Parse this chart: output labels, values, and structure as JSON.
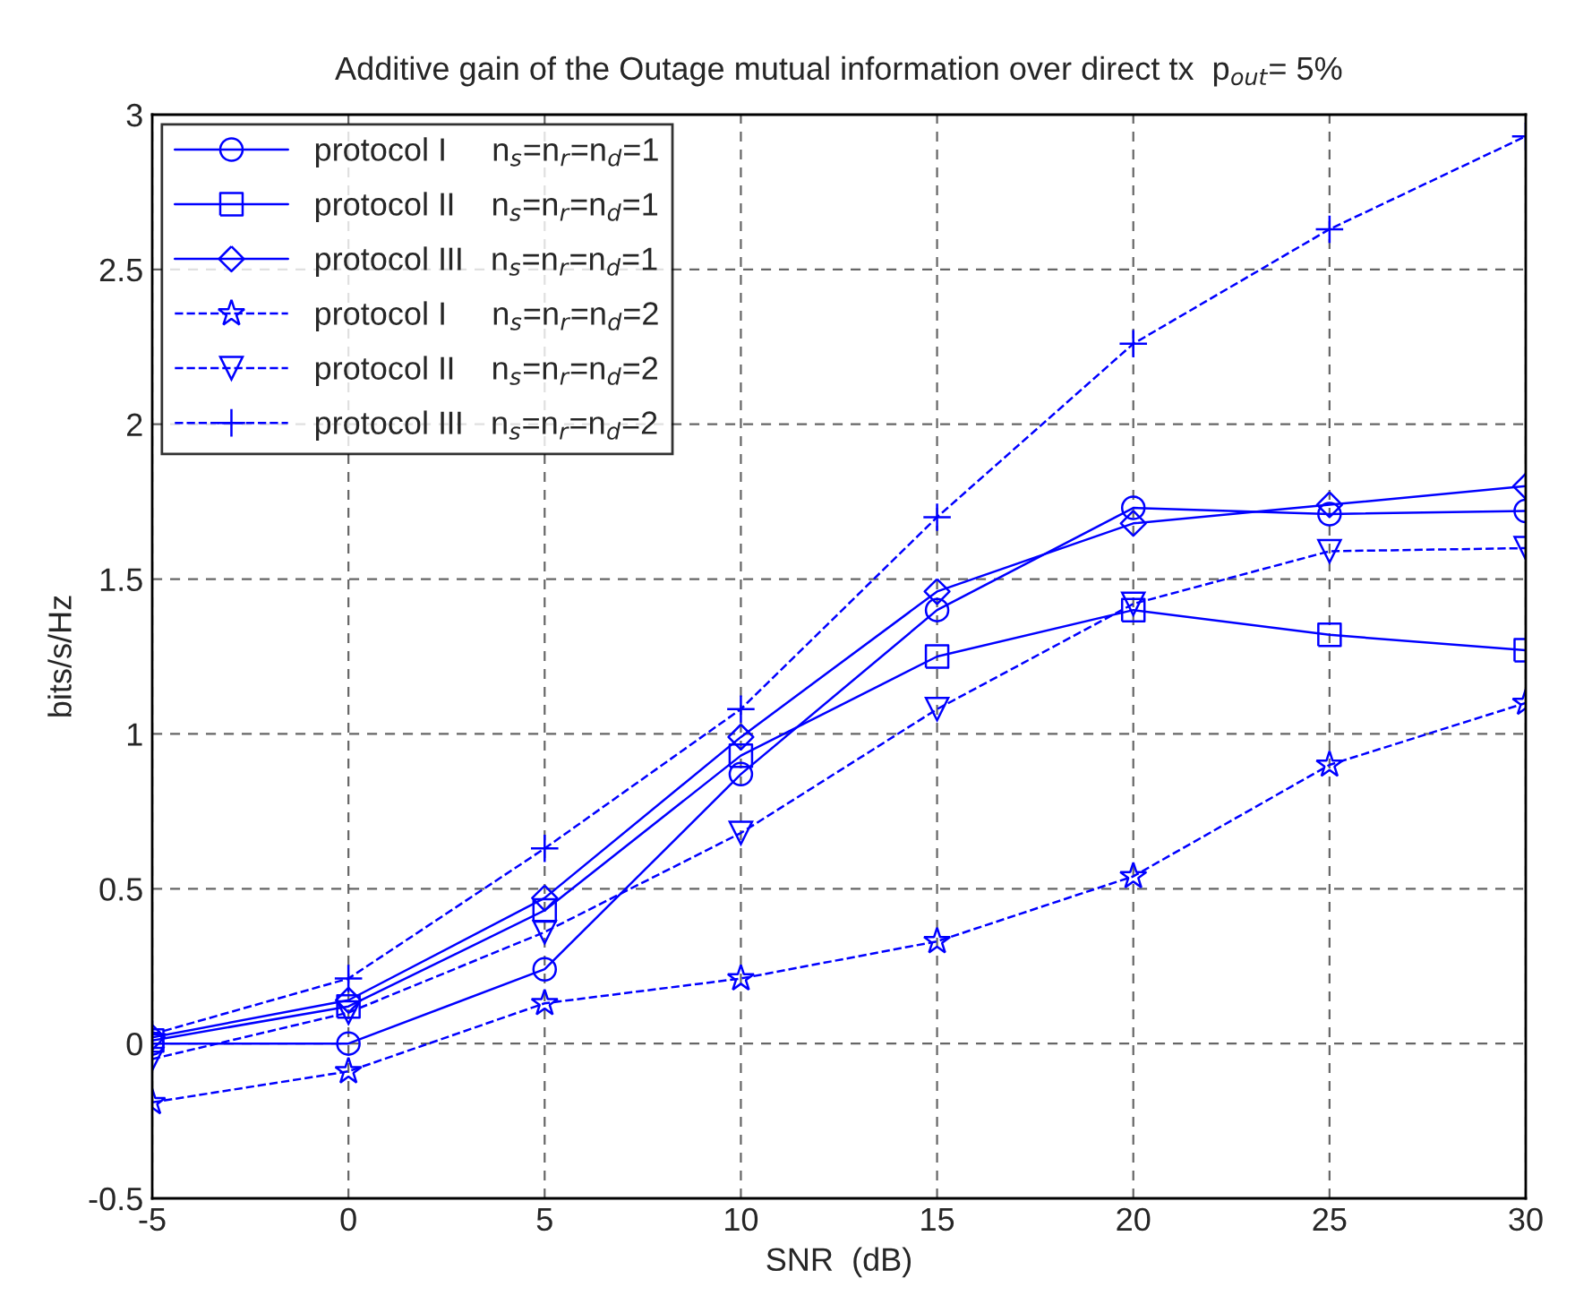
{
  "chart_data": {
    "type": "line",
    "title": "Additive gain of the Outage mutual information over direct tx  p$_{out}$= 5%",
    "xlabel": "SNR  (dB)",
    "ylabel": "bits/s/Hz",
    "x": [
      -5,
      0,
      5,
      10,
      15,
      20,
      25,
      30
    ],
    "series": [
      {
        "name": "protocol I     n$_{s}$=n$_{r}$=n$_{d}$=1",
        "color": "#0000ff",
        "marker": "circle",
        "line_style": "solid",
        "values": [
          0.0,
          0.0,
          0.24,
          0.87,
          1.4,
          1.73,
          1.71,
          1.72
        ]
      },
      {
        "name": "protocol II    n$_{s}$=n$_{r}$=n$_{d}$=1",
        "color": "#0000ff",
        "marker": "square",
        "line_style": "solid",
        "values": [
          0.01,
          0.12,
          0.43,
          0.93,
          1.25,
          1.4,
          1.32,
          1.27
        ]
      },
      {
        "name": "protocol III   n$_{s}$=n$_{r}$=n$_{d}$=1",
        "color": "#0000ff",
        "marker": "diamond",
        "line_style": "solid",
        "values": [
          0.02,
          0.14,
          0.47,
          0.99,
          1.46,
          1.68,
          1.74,
          1.8
        ]
      },
      {
        "name": "protocol I     n$_{s}$=n$_{r}$=n$_{d}$=2",
        "color": "#0000ff",
        "marker": "star",
        "line_style": "dashed",
        "values": [
          -0.19,
          -0.09,
          0.13,
          0.21,
          0.33,
          0.54,
          0.9,
          1.1
        ]
      },
      {
        "name": "protocol II    n$_{s}$=n$_{r}$=n$_{d}$=2",
        "color": "#0000ff",
        "marker": "triangle",
        "line_style": "dashed",
        "values": [
          -0.05,
          0.1,
          0.36,
          0.68,
          1.08,
          1.42,
          1.59,
          1.6
        ]
      },
      {
        "name": "protocol III   n$_{s}$=n$_{r}$=n$_{d}$=2",
        "color": "#0000ff",
        "marker": "cross",
        "line_style": "dashed",
        "values": [
          0.03,
          0.21,
          0.63,
          1.08,
          1.7,
          2.26,
          2.63,
          2.93
        ]
      }
    ],
    "xlim": [
      -5,
      30
    ],
    "xticks": [
      -5,
      0,
      5,
      10,
      15,
      20,
      25,
      30
    ],
    "ylim": [
      -0.5,
      3
    ],
    "yticks": [
      -0.5,
      0,
      0.5,
      1,
      1.5,
      2,
      2.5,
      3
    ],
    "grid": true,
    "legend": "top left"
  }
}
